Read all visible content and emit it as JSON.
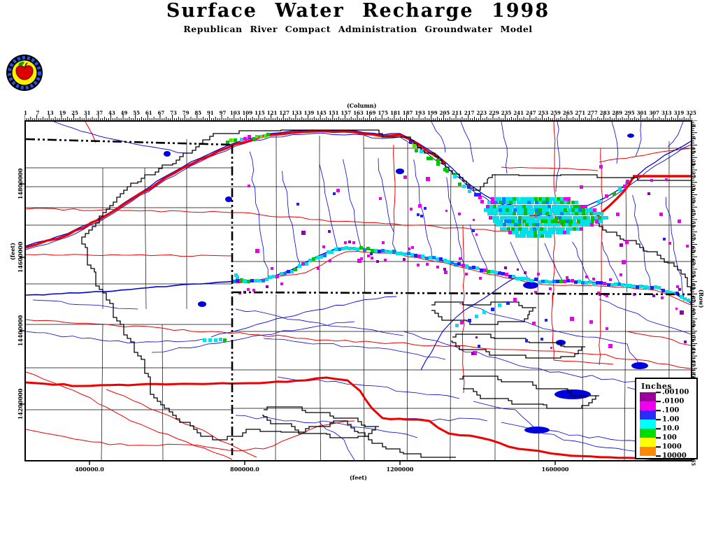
{
  "header": {
    "title": "Surface Water Recharge 1998",
    "subtitle": "Republican River Compact Administration Groundwater Model",
    "logo": "apple-seal-logo"
  },
  "axes": {
    "column": {
      "label": "(Column)",
      "ticks": [
        1,
        7,
        13,
        19,
        25,
        31,
        37,
        43,
        49,
        55,
        61,
        67,
        73,
        79,
        85,
        91,
        97,
        103,
        109,
        115,
        121,
        127,
        133,
        139,
        145,
        151,
        157,
        163,
        169,
        175,
        181,
        187,
        193,
        199,
        205,
        211,
        217,
        223,
        229,
        235,
        241,
        247,
        253,
        259,
        265,
        271,
        277,
        283,
        289,
        295,
        301,
        307,
        313,
        319,
        325
      ]
    },
    "row": {
      "label": "(Row)",
      "ticks": [
        3,
        9,
        15,
        21,
        27,
        33,
        39,
        45,
        51,
        57,
        63,
        69,
        75,
        81,
        87,
        93,
        99,
        105,
        111,
        117,
        123,
        129,
        135,
        141,
        147,
        153,
        159,
        165
      ]
    },
    "x_feet": {
      "label": "(feet)",
      "ticks": [
        "400000.0",
        "800000.0",
        "1200000",
        "1600000"
      ]
    },
    "y_feet": {
      "label": "(feet)",
      "ticks": [
        "14800000",
        "14600000",
        "14400000",
        "14200000"
      ]
    }
  },
  "legend": {
    "title": "Inches",
    "labels": [
      ".00100",
      ".0100",
      ".100",
      "1.00",
      "10.0",
      "100",
      "1000",
      "10000"
    ],
    "band_colors": [
      "#990099",
      "#ee00ee",
      "#2b2bff",
      "#00ffff",
      "#00dd00",
      "#ffff00",
      "#ff8800"
    ]
  },
  "map_colors": {
    "river": "#0000dd",
    "road": "#ee0000",
    "boundary": "#000000",
    "cell_magenta": "#e800e8",
    "cell_purple": "#9000a8",
    "cell_blue": "#2020ff",
    "cell_dodger": "#0080ff",
    "cell_cyan": "#00e0e8",
    "cell_green": "#00c400",
    "cell_lime": "#55e000"
  }
}
